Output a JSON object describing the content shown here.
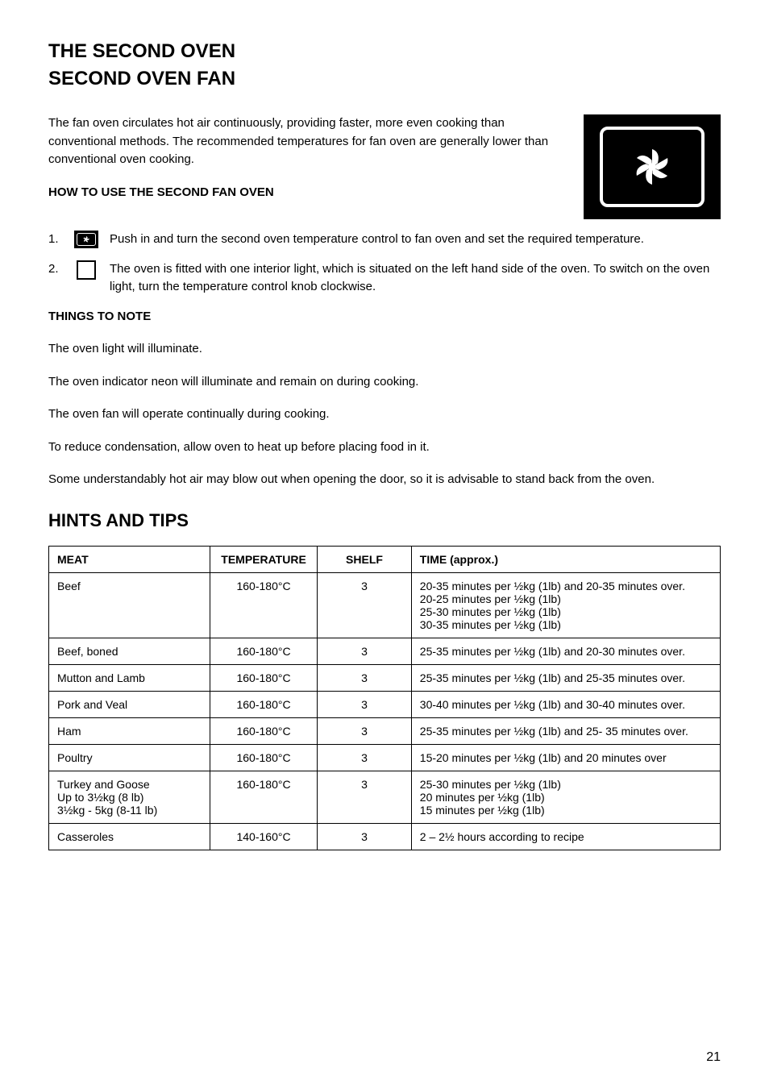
{
  "section": {
    "title": "THE SECOND OVEN",
    "subtitle": "SECOND OVEN FAN",
    "intro": "The fan oven circulates hot air continuously, providing faster, more even cooking than conventional methods. The recommended temperatures for fan oven are generally lower than conventional oven cooking."
  },
  "steps_heading": "HOW TO USE THE SECOND FAN OVEN",
  "steps": [
    {
      "num": "1.",
      "text": "Push in and turn the second oven temperature control to fan oven and set the required temperature."
    },
    {
      "num": "2.",
      "text": "The oven is fitted with one interior light, which is situated on the left hand side of the oven. To switch on the oven light, turn the temperature control knob clockwise."
    }
  ],
  "things_title": "THINGS TO NOTE",
  "things": [
    "The oven light will illuminate.",
    "The oven indicator neon will illuminate and remain on during cooking.",
    "The oven fan will operate continually during cooking.",
    "To reduce condensation, allow oven to heat up before placing food in it.",
    "Some understandably hot air may blow out when opening the door, so it is advisable to stand back from the oven."
  ],
  "hints_title": "HINTS AND TIPS",
  "table": {
    "columns": [
      "MEAT",
      "TEMPERATURE",
      "SHELF",
      "TIME (approx.)"
    ],
    "col_widths": [
      "24%",
      "16%",
      "14%",
      "46%"
    ],
    "rows": [
      {
        "meat": [
          "Beef"
        ],
        "temp": [
          "160-180°C"
        ],
        "shelf": [
          "3"
        ],
        "time": [
          "20-35 minutes per ½kg (1lb) and 20-35 minutes over.",
          "20-25 minutes per ½kg (1lb)",
          "25-30 minutes per ½kg (1lb)",
          "30-35 minutes per ½kg (1lb)"
        ]
      },
      {
        "meat": [
          "Beef, boned"
        ],
        "temp": [
          "160-180°C"
        ],
        "shelf": [
          "3"
        ],
        "time": [
          "25-35 minutes per ½kg (1lb) and 20-30 minutes over."
        ]
      },
      {
        "meat": [
          "Mutton and Lamb"
        ],
        "temp": [
          "160-180°C"
        ],
        "shelf": [
          "3"
        ],
        "time": [
          "25-35 minutes per ½kg (1lb) and 25-35 minutes over."
        ]
      },
      {
        "meat": [
          "Pork and Veal"
        ],
        "temp": [
          "160-180°C"
        ],
        "shelf": [
          "3"
        ],
        "time": [
          "30-40 minutes per ½kg (1lb) and 30-40 minutes over."
        ]
      },
      {
        "meat": [
          "Ham"
        ],
        "temp": [
          "160-180°C"
        ],
        "shelf": [
          "3"
        ],
        "time": [
          "25-35 minutes per ½kg (1lb) and 25- 35 minutes over."
        ]
      },
      {
        "meat": [
          "Poultry"
        ],
        "temp": [
          "160-180°C"
        ],
        "shelf": [
          "3"
        ],
        "time": [
          "15-20 minutes per ½kg (1lb) and 20 minutes over"
        ]
      },
      {
        "meat": [
          "Turkey and Goose",
          "Up to 3½kg (8 lb)",
          "3½kg - 5kg (8-11 lb)"
        ],
        "temp": [
          "160-180°C"
        ],
        "shelf": [
          "3"
        ],
        "time": [
          "25-30 minutes per ½kg (1lb)",
          "20 minutes per ½kg (1lb)",
          "15 minutes per ½kg (1lb)"
        ]
      },
      {
        "meat": [
          "Casseroles"
        ],
        "temp": [
          "140-160°C"
        ],
        "shelf": [
          "3"
        ],
        "time": [
          "2 – 2½ hours according to recipe"
        ]
      }
    ]
  },
  "page_number": "21"
}
